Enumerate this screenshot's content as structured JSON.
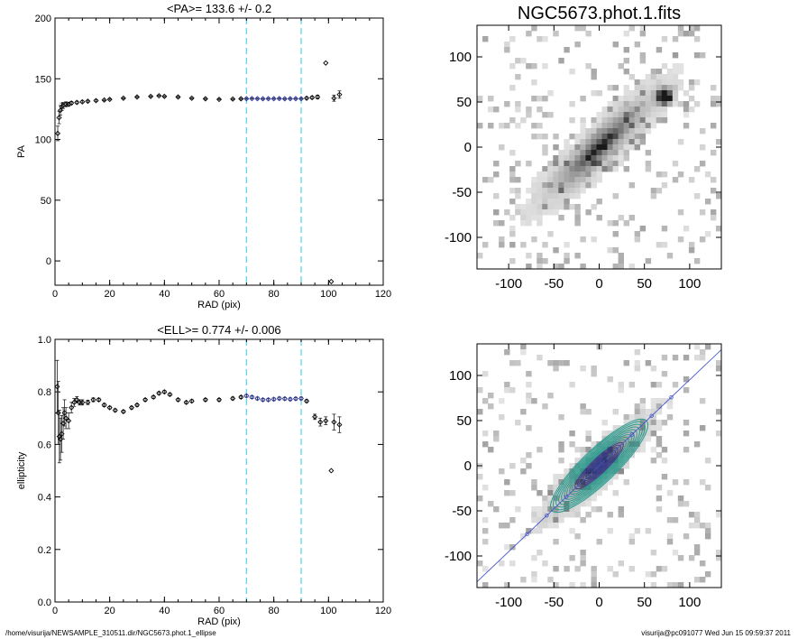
{
  "footer": {
    "left": "/home/visurija/NEWSAMPLE_310511.dir/NGC5673.phot.1_ellipse",
    "right": "visurija@pc091077  Wed Jun 15 09:59:37 2011"
  },
  "colors": {
    "fit_range": "#5fd7e6",
    "fit_points": "#2b36a8",
    "isophote_outer": "#2e9c8f",
    "isophote_inner": "#3a3f8a",
    "major_axis": "#4455cc",
    "points": "#000000"
  },
  "chart_data": [
    {
      "type": "scatter",
      "title": "<PA>= 133.6 +/-   0.2",
      "xlabel": "RAD (pix)",
      "ylabel": "PA",
      "xlim": [
        0,
        120
      ],
      "ylim": [
        -20,
        200
      ],
      "xticks": [
        "0",
        "20",
        "40",
        "60",
        "80",
        "100",
        "120"
      ],
      "yticks": [
        "0",
        "50",
        "100",
        "150",
        "200"
      ],
      "fit_range": [
        70,
        90
      ],
      "series": [
        {
          "x": [
            1,
            1.5,
            2,
            2.5,
            3,
            4,
            5,
            6,
            8,
            10,
            12,
            15,
            18,
            20,
            25,
            30,
            35,
            38,
            40,
            45,
            50,
            55,
            60,
            65,
            68
          ],
          "y": [
            105,
            118,
            124,
            127,
            128,
            129,
            129,
            130,
            130.5,
            131,
            131.5,
            132,
            132.5,
            133,
            134,
            135,
            135.5,
            136,
            135.5,
            135,
            134,
            133.5,
            133,
            133.3,
            133.5
          ],
          "err": [
            6,
            5,
            4,
            3,
            2.5,
            2,
            1.5,
            1.2,
            1,
            0.8,
            0.7,
            0.6,
            0.5,
            0.5,
            0.4,
            0.4,
            0.4,
            0.4,
            0.4,
            0.4,
            0.4,
            0.4,
            0.4,
            0.4,
            0.4
          ]
        },
        {
          "x": [
            70,
            72,
            74,
            76,
            78,
            80,
            82,
            84,
            86,
            88,
            90
          ],
          "y": [
            133.6,
            133.7,
            133.6,
            133.5,
            133.6,
            133.6,
            133.7,
            133.5,
            133.6,
            133.6,
            133.6
          ],
          "err": [
            0.4,
            0.4,
            0.4,
            0.4,
            0.4,
            0.4,
            0.4,
            0.4,
            0.4,
            0.4,
            0.4
          ]
        },
        {
          "x": [
            92,
            94,
            96,
            99,
            101,
            102,
            104
          ],
          "y": [
            134,
            134.5,
            135,
            163,
            -17,
            134,
            137
          ],
          "err": [
            0.8,
            1,
            1.5,
            0,
            0,
            2.5,
            3
          ]
        }
      ]
    },
    {
      "type": "scatter",
      "title": "<ELL>= 0.774 +/-  0.006",
      "xlabel": "RAD (pix)",
      "ylabel": "ellipticity",
      "xlim": [
        0,
        120
      ],
      "ylim": [
        0,
        1
      ],
      "xticks": [
        "0",
        "20",
        "40",
        "60",
        "80",
        "100",
        "120"
      ],
      "yticks": [
        "0.0",
        "0.2",
        "0.4",
        "0.6",
        "0.8",
        "1.0"
      ],
      "fit_range": [
        70,
        90
      ],
      "series": [
        {
          "x": [
            0.8,
            1.2,
            1.6,
            2,
            2.5,
            3,
            3.5,
            4,
            5,
            6,
            7,
            8,
            9,
            10,
            12,
            14,
            16,
            18,
            20,
            22,
            25,
            28,
            30,
            33,
            36,
            38,
            40,
            42,
            45,
            48,
            50,
            55,
            60,
            65,
            68
          ],
          "y": [
            0.82,
            0.72,
            0.63,
            0.62,
            0.64,
            0.68,
            0.72,
            0.7,
            0.69,
            0.74,
            0.76,
            0.77,
            0.76,
            0.76,
            0.76,
            0.77,
            0.77,
            0.75,
            0.74,
            0.73,
            0.725,
            0.74,
            0.75,
            0.77,
            0.78,
            0.795,
            0.8,
            0.79,
            0.77,
            0.76,
            0.765,
            0.77,
            0.77,
            0.775,
            0.78
          ],
          "err": [
            0.1,
            0.12,
            0.1,
            0.08,
            0.07,
            0.06,
            0.05,
            0.04,
            0.03,
            0.02,
            0.015,
            0.012,
            0.01,
            0.01,
            0.008,
            0.007,
            0.006,
            0.006,
            0.005,
            0.005,
            0.005,
            0.005,
            0.005,
            0.005,
            0.005,
            0.005,
            0.005,
            0.005,
            0.005,
            0.005,
            0.005,
            0.005,
            0.005,
            0.005,
            0.005
          ]
        },
        {
          "x": [
            70,
            72,
            74,
            76,
            78,
            80,
            82,
            84,
            86,
            88,
            90
          ],
          "y": [
            0.785,
            0.78,
            0.775,
            0.77,
            0.77,
            0.772,
            0.775,
            0.774,
            0.772,
            0.774,
            0.775
          ],
          "err": [
            0.005,
            0.005,
            0.005,
            0.005,
            0.005,
            0.005,
            0.005,
            0.005,
            0.005,
            0.005,
            0.005
          ]
        },
        {
          "x": [
            92,
            95,
            97,
            99,
            101,
            102,
            104
          ],
          "y": [
            0.765,
            0.705,
            0.685,
            0.69,
            0.5,
            0.685,
            0.675
          ],
          "err": [
            0.005,
            0.01,
            0.015,
            0.015,
            0,
            0.03,
            0.03
          ]
        }
      ]
    },
    {
      "type": "heatmap",
      "title": "NGC5673.phot.1.fits",
      "xlim": [
        -135,
        135
      ],
      "ylim": [
        -135,
        135
      ],
      "xticks": [
        "-100",
        "-50",
        "0",
        "50",
        "100"
      ],
      "yticks": [
        "-100",
        "-50",
        "0",
        "50",
        "100"
      ],
      "galaxy": {
        "center": [
          0,
          0
        ],
        "pa_deg": 133.6,
        "ellipticity": 0.774,
        "major_radius": 110
      },
      "bright_knot": [
        72,
        56
      ]
    },
    {
      "type": "heatmap",
      "title": "",
      "xlim": [
        -135,
        135
      ],
      "ylim": [
        -135,
        135
      ],
      "xticks": [
        "-100",
        "-50",
        "0",
        "50",
        "100"
      ],
      "yticks": [
        "-100",
        "-50",
        "0",
        "50",
        "100"
      ],
      "galaxy": {
        "center": [
          0,
          0
        ],
        "pa_deg": 133.6,
        "ellipticity": 0.774,
        "major_radius": 90
      },
      "isophote_count": 18
    }
  ]
}
